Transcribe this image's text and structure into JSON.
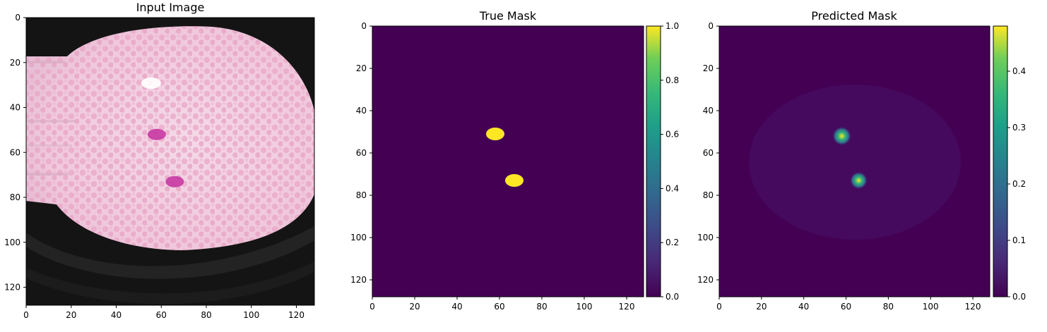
{
  "colors": {
    "viridis_low": "#440154",
    "viridis_high": "#fde725",
    "axis": "#000000"
  },
  "chart_data": [
    {
      "type": "heatmap",
      "title": "Input Image",
      "content": "microscopy image of blood smear (RGB)",
      "xlim": [
        0,
        128
      ],
      "ylim": [
        128,
        0
      ],
      "xticks": [
        0,
        20,
        40,
        60,
        80,
        100,
        120
      ],
      "yticks": [
        0,
        20,
        40,
        60,
        80,
        100,
        120
      ],
      "blobs": [
        {
          "x": 58,
          "y": 52
        },
        {
          "x": 66,
          "y": 73
        }
      ]
    },
    {
      "type": "heatmap",
      "title": "True Mask",
      "colormap": "viridis",
      "xlim": [
        0,
        128
      ],
      "ylim": [
        128,
        0
      ],
      "xticks": [
        0,
        20,
        40,
        60,
        80,
        100,
        120
      ],
      "yticks": [
        0,
        20,
        40,
        60,
        80,
        100,
        120
      ],
      "colorbar": {
        "min": 0.0,
        "max": 1.0,
        "ticks": [
          "0.0",
          "0.2",
          "0.4",
          "0.6",
          "0.8",
          "1.0"
        ]
      },
      "blobs": [
        {
          "x": 58,
          "y": 51,
          "value": 1.0
        },
        {
          "x": 67,
          "y": 73,
          "value": 1.0
        }
      ]
    },
    {
      "type": "heatmap",
      "title": "Predicted Mask",
      "colormap": "viridis",
      "xlim": [
        0,
        128
      ],
      "ylim": [
        128,
        0
      ],
      "xticks": [
        0,
        20,
        40,
        60,
        80,
        100,
        120
      ],
      "yticks": [
        0,
        20,
        40,
        60,
        80,
        100,
        120
      ],
      "colorbar": {
        "min": 0.0,
        "max": 0.48,
        "ticks": [
          "0.0",
          "0.1",
          "0.2",
          "0.3",
          "0.4"
        ]
      },
      "blobs": [
        {
          "x": 58,
          "y": 52,
          "value": 0.48
        },
        {
          "x": 66,
          "y": 73,
          "value": 0.4
        }
      ]
    }
  ]
}
